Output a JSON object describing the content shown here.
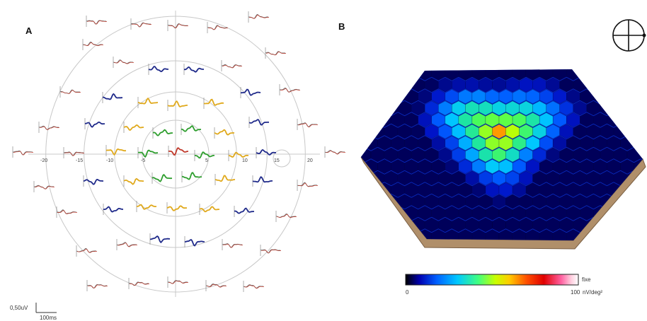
{
  "panel_a": {
    "label": "A",
    "axis_ticks": [
      "-20",
      "-15",
      "-10",
      "-5",
      "5",
      "10",
      "15",
      "20"
    ],
    "scale_bar": {
      "amplitude_label": "0,50uV",
      "time_label": "100ms"
    },
    "ring_colors": {
      "center": "#c0392b",
      "ring1": "#2e9e2e",
      "ring2": "#e0a91c",
      "ring3": "#1f2a8a",
      "ring4": "#7a7a7a",
      "trace_overlay": "#c0392b"
    }
  },
  "panel_b": {
    "label": "B",
    "colorbar": {
      "min_label": "0",
      "max_label": "100",
      "unit_label": "nV/deg²",
      "top_label": "fixe",
      "colors": [
        "#000000",
        "#0000b0",
        "#0060ff",
        "#00c8ff",
        "#40ff80",
        "#c8ff00",
        "#ffcc00",
        "#ff5000",
        "#e00000",
        "#ff60a0",
        "#ffd0e0",
        "#ffffff"
      ]
    }
  }
}
